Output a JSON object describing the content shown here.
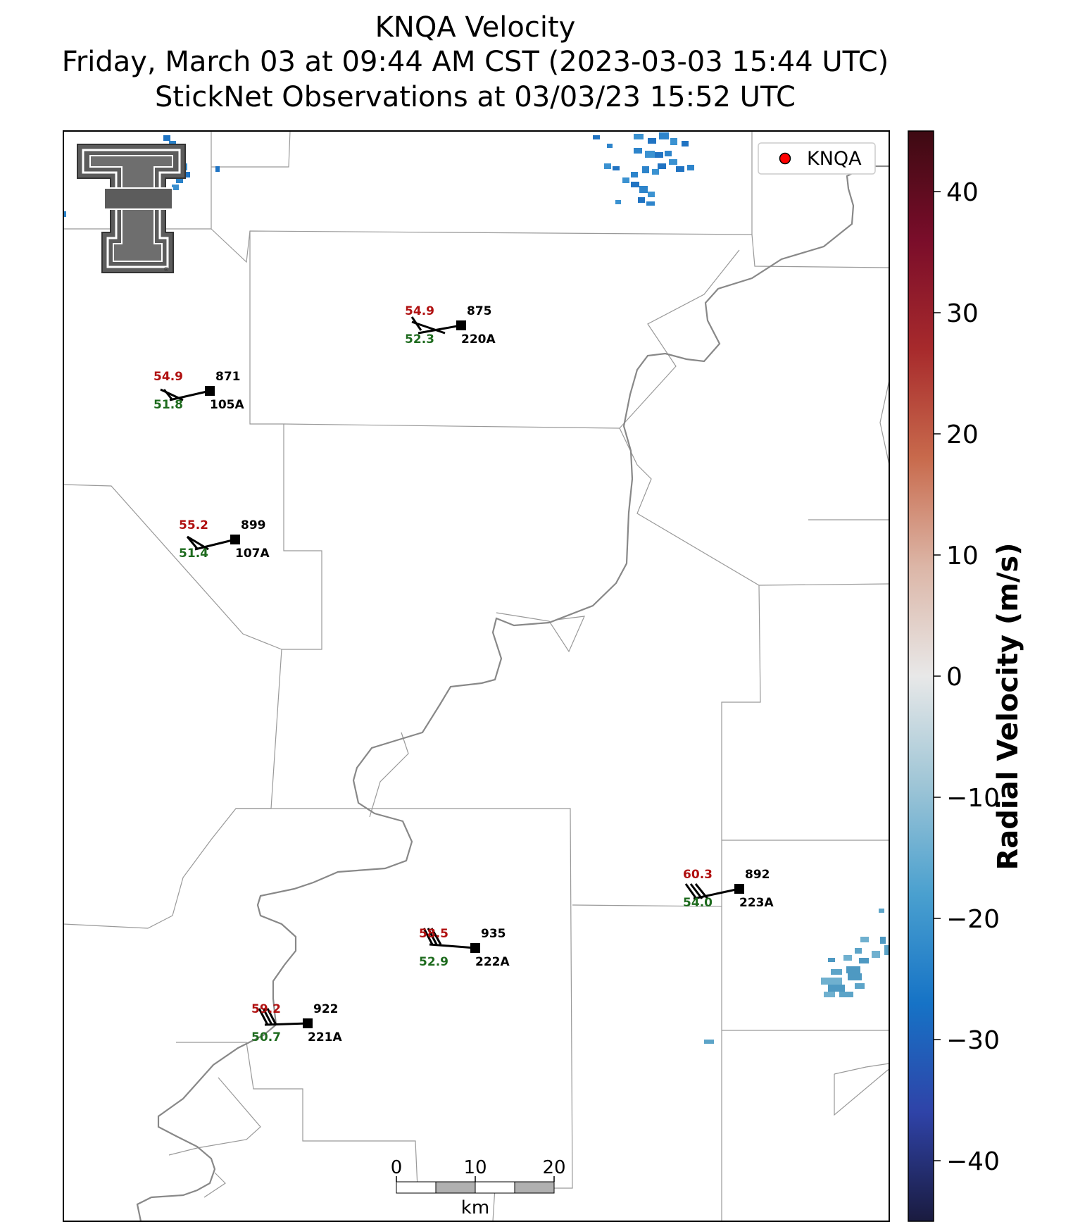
{
  "title": {
    "line1": "KNQA Velocity",
    "line2": "Friday, March 03 at 09:44 AM CST (2023-03-03 15:44 UTC)",
    "line3": "StickNet Observations at 03/03/23 15:52 UTC"
  },
  "legend": {
    "label": "KNQA",
    "marker_color": "#ff0000"
  },
  "logo": {
    "name": "texas-tech-double-t-logo"
  },
  "colorbar": {
    "label": "Radial Velocity (m/s)",
    "ticks": [
      "40",
      "30",
      "20",
      "10",
      "0",
      "−10",
      "−20",
      "−30",
      "−40"
    ],
    "range": [
      -45,
      45
    ],
    "colors": [
      "#1a1b3f",
      "#2f43a8",
      "#1673c6",
      "#4aa0cf",
      "#9ec5d6",
      "#e8e8e8",
      "#dcb6a7",
      "#c86a4c",
      "#a72a2c",
      "#7a0d2a",
      "#3d0a12"
    ]
  },
  "scalebar": {
    "ticks": [
      "0",
      "10",
      "20"
    ],
    "unit": "km"
  },
  "stations": [
    {
      "id": "220A",
      "num": "875",
      "temp": "54.9",
      "dew": "52.3"
    },
    {
      "id": "105A",
      "num": "871",
      "temp": "54.9",
      "dew": "51.8"
    },
    {
      "id": "107A",
      "num": "899",
      "temp": "55.2",
      "dew": "51.4"
    },
    {
      "id": "223A",
      "num": "892",
      "temp": "60.3",
      "dew": "54.0"
    },
    {
      "id": "222A",
      "num": "935",
      "temp": "58.5",
      "dew": "52.9"
    },
    {
      "id": "221A",
      "num": "922",
      "temp": "59.2",
      "dew": "50.7"
    }
  ]
}
